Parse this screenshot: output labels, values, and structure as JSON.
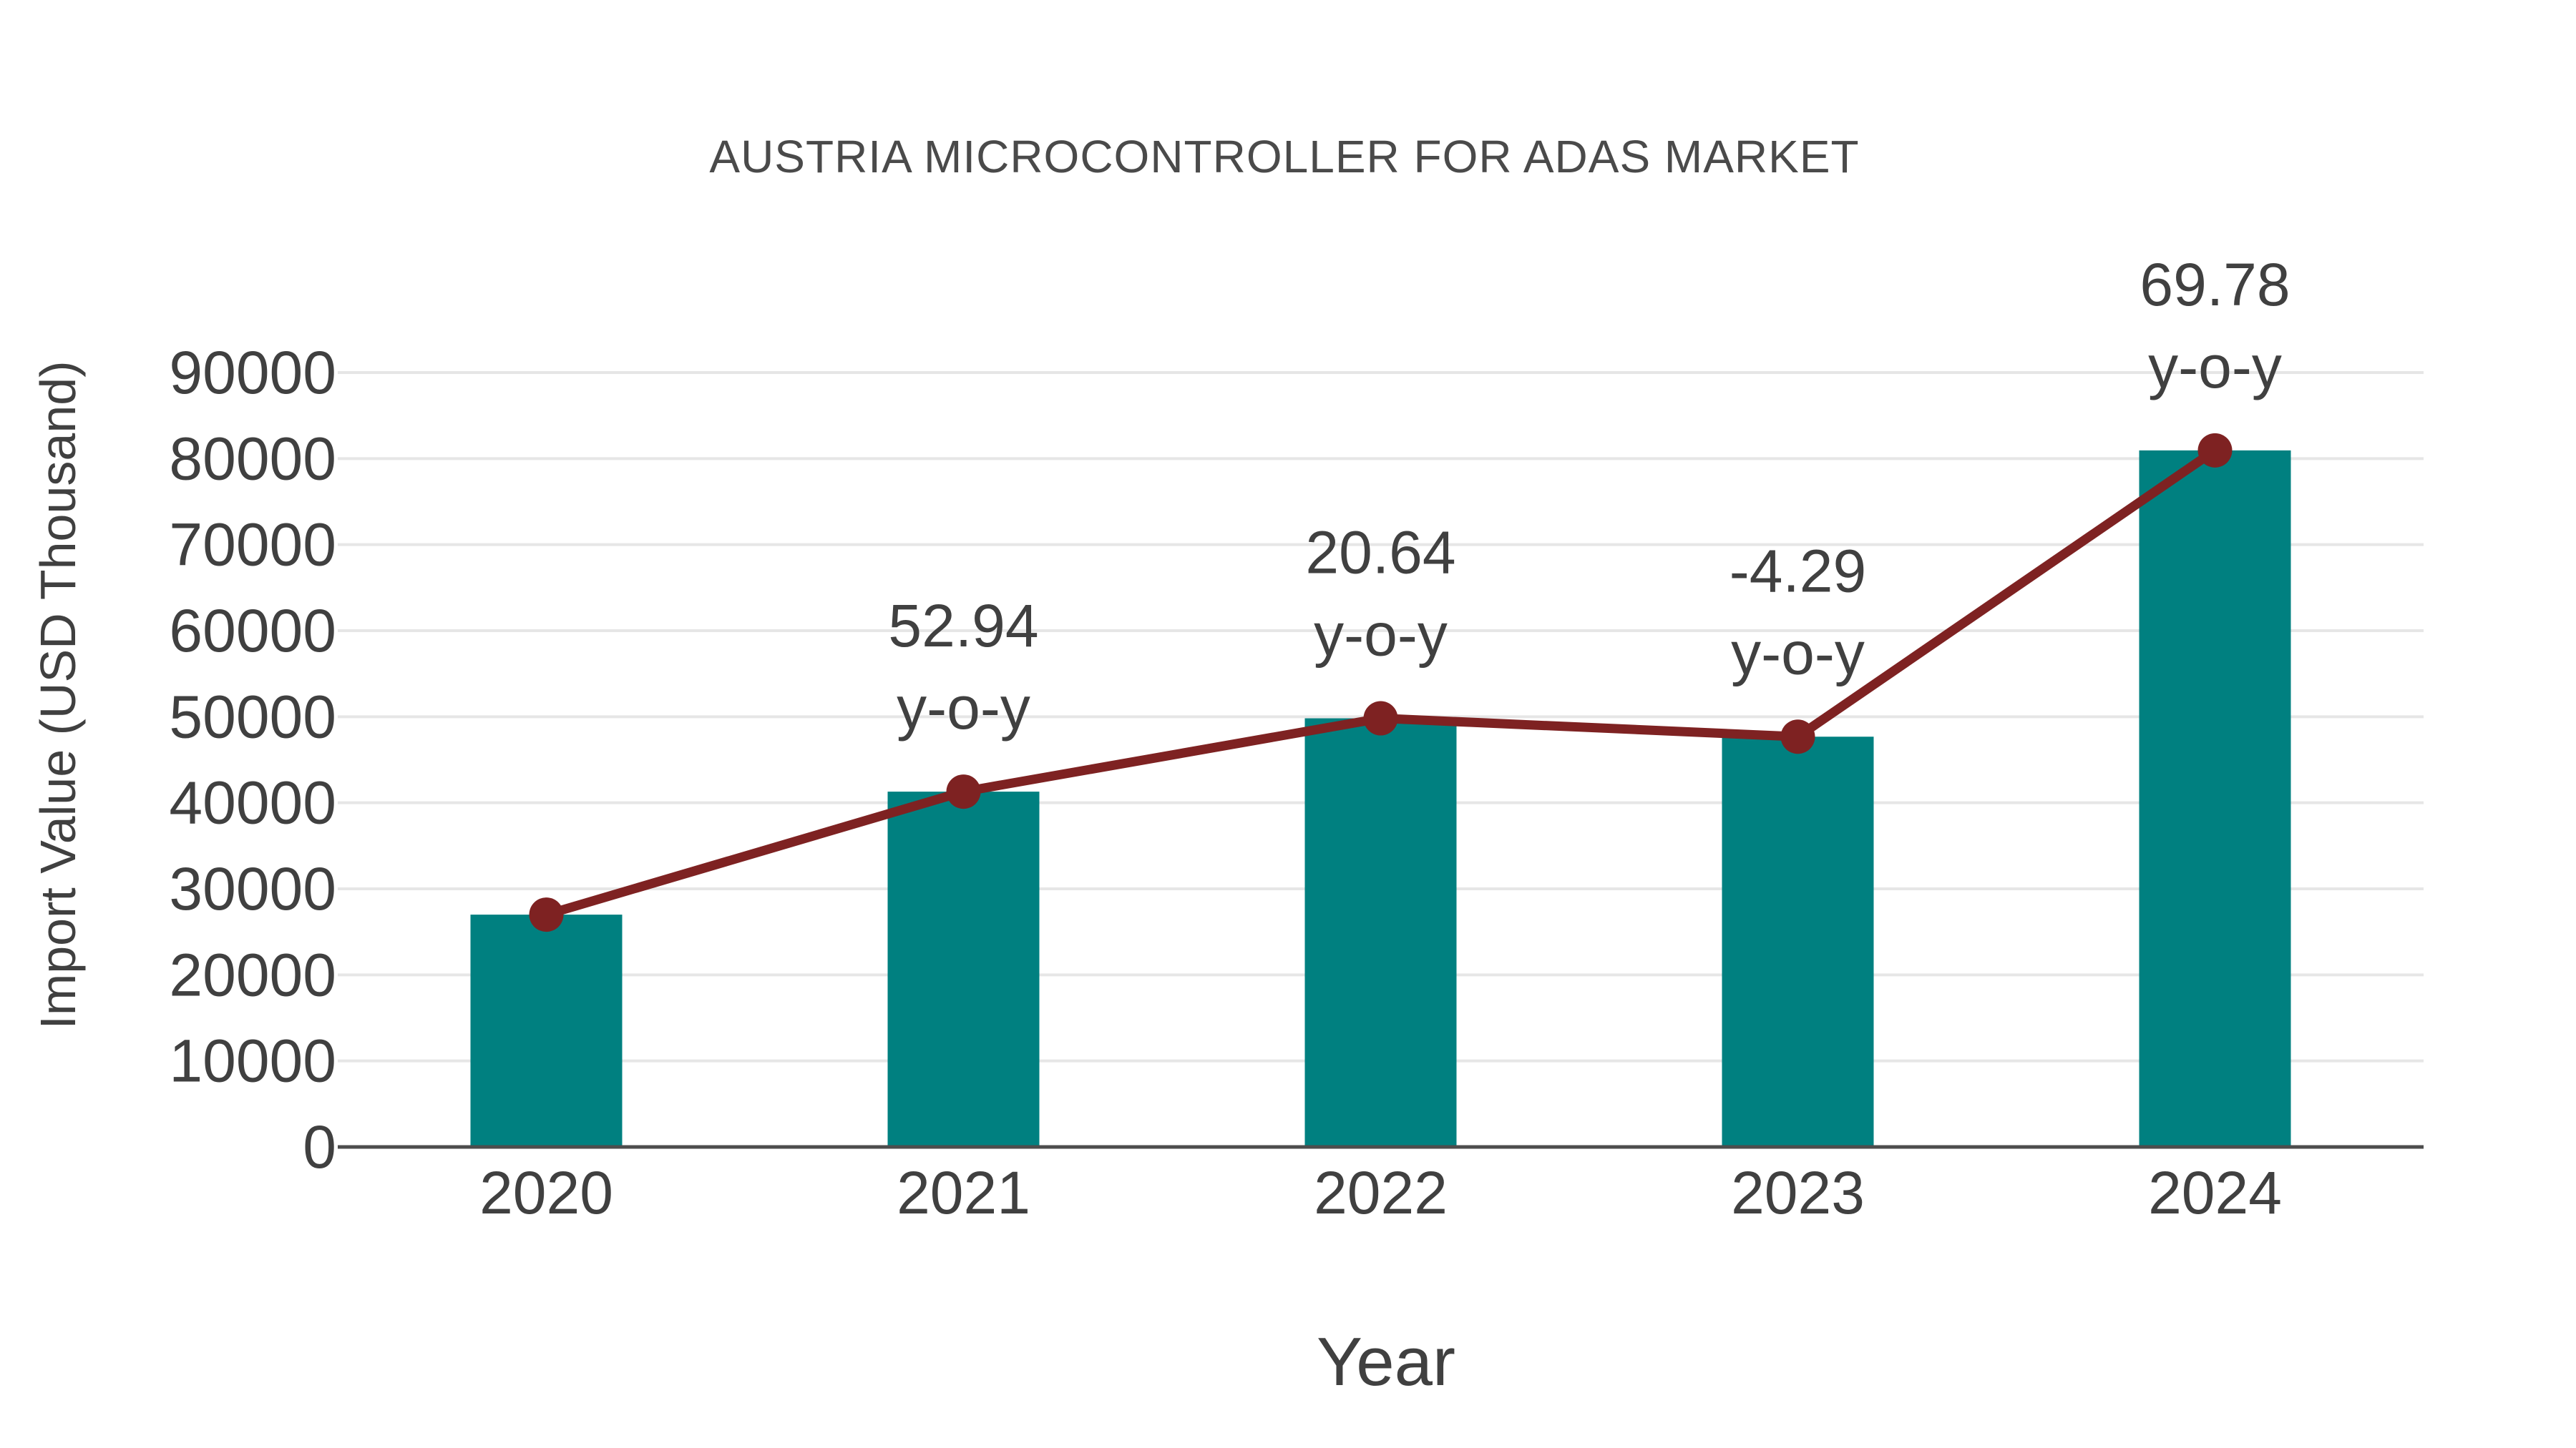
{
  "colors": {
    "bar": "#008080",
    "line": "#7e2222",
    "marker": "#7e2222",
    "text": "#404040",
    "title_text": "#4a4a4a",
    "grid": "#e6e6e6",
    "axis": "#4d4d4d",
    "background": "#ffffff"
  },
  "chart_data": {
    "type": "bar",
    "title": "AUSTRIA MICROCONTROLLER FOR ADAS MARKET",
    "categories": [
      "2020",
      "2021",
      "2022",
      "2023",
      "2024"
    ],
    "series": [
      {
        "name": "Import Value bars",
        "type": "bar",
        "values": [
          27000,
          41294,
          49817,
          47680,
          80952
        ]
      },
      {
        "name": "Import Value trend",
        "type": "line",
        "values": [
          27000,
          41294,
          49817,
          47680,
          80952
        ]
      }
    ],
    "annotations": [
      {
        "category": "2021",
        "value": "52.94",
        "suffix": "y-o-y"
      },
      {
        "category": "2022",
        "value": "20.64",
        "suffix": "y-o-y"
      },
      {
        "category": "2023",
        "value": "-4.29",
        "suffix": "y-o-y"
      },
      {
        "category": "2024",
        "value": "69.78",
        "suffix": "y-o-y"
      }
    ],
    "xlabel": "Year",
    "ylabel": "Import Value (USD Thousand)",
    "ylim": [
      0,
      90000
    ],
    "ytick_step": 10000,
    "yticks": [
      0,
      10000,
      20000,
      30000,
      40000,
      50000,
      60000,
      70000,
      80000,
      90000
    ],
    "grid": true,
    "legend": false
  }
}
